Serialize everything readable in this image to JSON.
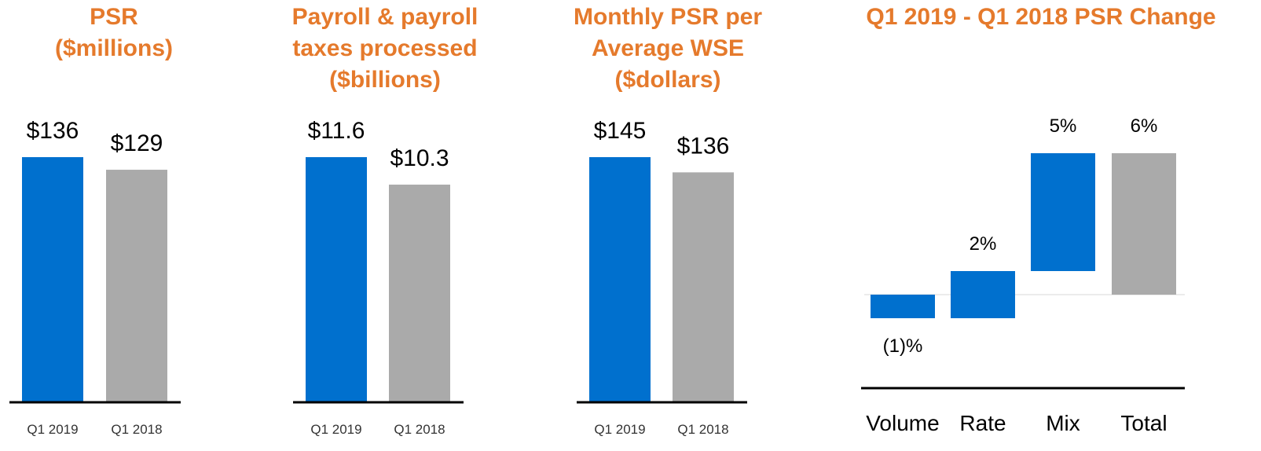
{
  "colors": {
    "title": "#E57A2C",
    "current": "#0070CE",
    "prior": "#AAAAAA",
    "axis": "#000000",
    "text": "#000000",
    "tick": "#333333"
  },
  "chart_data": [
    {
      "type": "bar",
      "title_lines": [
        "PSR",
        "($millions)"
      ],
      "categories": [
        "Q1 2019",
        "Q1 2018"
      ],
      "values": [
        136,
        129
      ],
      "labels": [
        "$136",
        "$129"
      ],
      "ylim": [
        0,
        136
      ]
    },
    {
      "type": "bar",
      "title_lines": [
        "Payroll & payroll",
        "taxes processed",
        "($billions)"
      ],
      "categories": [
        "Q1 2019",
        "Q1 2018"
      ],
      "values": [
        11.6,
        10.3
      ],
      "labels": [
        "$11.6",
        "$10.3"
      ],
      "ylim": [
        0,
        11.6
      ]
    },
    {
      "type": "bar",
      "title_lines": [
        "Monthly PSR per",
        "Average WSE",
        "($dollars)"
      ],
      "categories": [
        "Q1 2019",
        "Q1 2018"
      ],
      "values": [
        145,
        136
      ],
      "labels": [
        "$145",
        "$136"
      ],
      "ylim": [
        0,
        145
      ]
    },
    {
      "type": "waterfall",
      "title_lines": [
        "Q1 2019 - Q1 2018 PSR Change"
      ],
      "categories": [
        "Volume",
        "Rate",
        "Mix",
        "Total"
      ],
      "values": [
        -1,
        2,
        5,
        6
      ],
      "labels": [
        "(1)%",
        "2%",
        "5%",
        "6%"
      ]
    }
  ]
}
